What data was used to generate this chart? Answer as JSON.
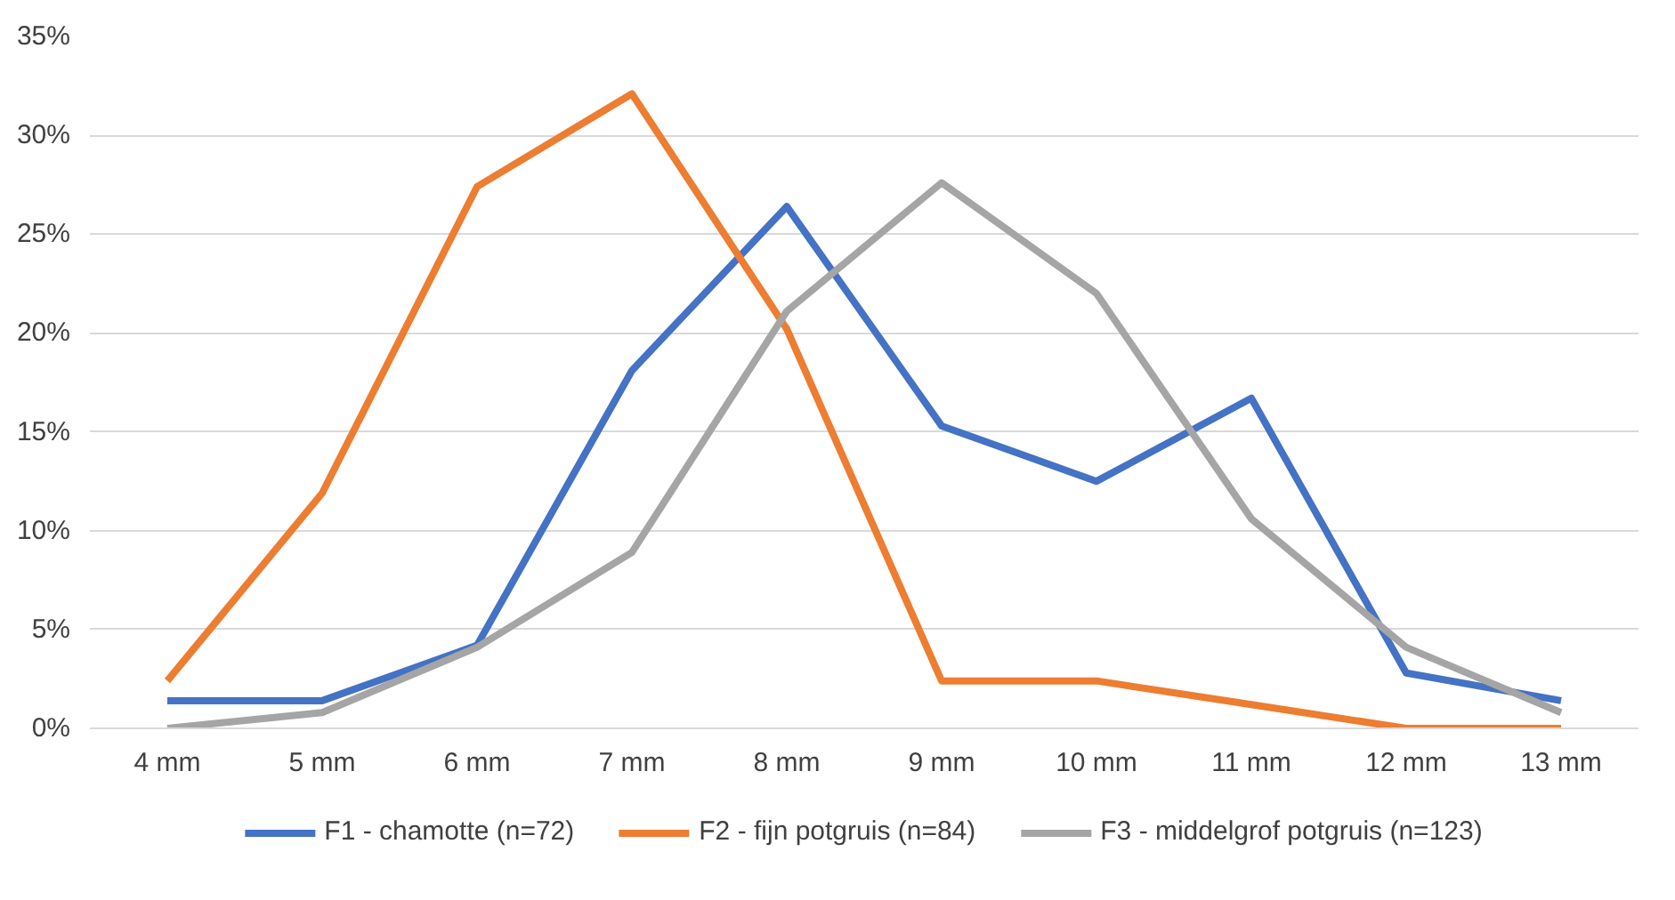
{
  "chart_data": {
    "type": "line",
    "categories": [
      "4 mm",
      "5 mm",
      "6 mm",
      "7 mm",
      "8 mm",
      "9 mm",
      "10 mm",
      "11 mm",
      "12 mm",
      "13 mm"
    ],
    "series": [
      {
        "name": "F1 - chamotte (n=72)",
        "color": "#4472c4",
        "values": [
          1.4,
          1.4,
          4.2,
          18.1,
          26.4,
          15.3,
          12.5,
          16.7,
          2.8,
          1.4
        ]
      },
      {
        "name": "F2 - fijn potgruis (n=84)",
        "color": "#ed7d31",
        "values": [
          2.4,
          11.9,
          27.4,
          32.1,
          20.2,
          2.4,
          2.4,
          1.2,
          0,
          0
        ]
      },
      {
        "name": "F3 - middelgrof potgruis (n=123)",
        "color": "#a5a5a5",
        "values": [
          0,
          0.8,
          4.1,
          8.9,
          21.1,
          27.6,
          22.0,
          10.6,
          4.1,
          0.8
        ]
      }
    ],
    "ylim": [
      0,
      35
    ],
    "yticks": [
      {
        "value": 0,
        "label": "0%"
      },
      {
        "value": 5,
        "label": "5%"
      },
      {
        "value": 10,
        "label": "10%"
      },
      {
        "value": 15,
        "label": "15%"
      },
      {
        "value": 20,
        "label": "20%"
      },
      {
        "value": 25,
        "label": "25%"
      },
      {
        "value": 30,
        "label": "30%"
      },
      {
        "value": 35,
        "label": "35%"
      }
    ],
    "grid": "y",
    "legend": "bottom",
    "marker": "none",
    "line_style": "solid"
  }
}
